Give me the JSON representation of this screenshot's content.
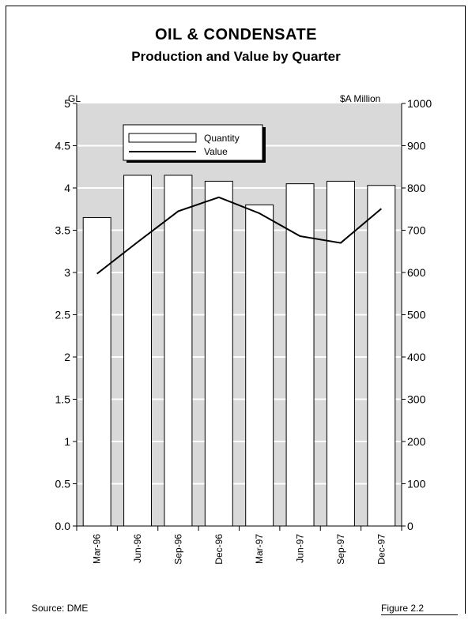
{
  "title": "OIL & CONDENSATE",
  "subtitle": "Production and Value by Quarter",
  "source": "Source: DME",
  "figure_label": "Figure 2.2",
  "colors": {
    "plot_bg": "#d9d9d9",
    "bar_fill": "#ffffff",
    "line": "#000000",
    "grid": "#ffffff"
  },
  "chart_data": {
    "type": "bar",
    "title": "OIL & CONDENSATE",
    "subtitle": "Production and Value by Quarter",
    "categories": [
      "Mar-96",
      "Jun-96",
      "Sep-96",
      "Dec-96",
      "Mar-97",
      "Jun-97",
      "Sep-97",
      "Dec-97"
    ],
    "series": [
      {
        "name": "Quantity",
        "type": "bar",
        "axis": "left",
        "values": [
          3.65,
          4.15,
          4.15,
          4.08,
          3.8,
          4.05,
          4.08,
          4.03
        ]
      },
      {
        "name": "Value",
        "type": "line",
        "axis": "right",
        "values": [
          597,
          672,
          745,
          778,
          740,
          686,
          670,
          751
        ]
      }
    ],
    "y_left": {
      "label": "GL",
      "ylim": [
        0,
        5
      ],
      "ticks": [
        "0.0",
        "0.5",
        "1",
        "1.5",
        "2",
        "2.5",
        "3",
        "3.5",
        "4",
        "4.5",
        "5"
      ]
    },
    "y_right": {
      "label": "$A Million",
      "ylim": [
        0,
        1000
      ],
      "ticks": [
        "0",
        "100",
        "200",
        "300",
        "400",
        "500",
        "600",
        "700",
        "800",
        "900",
        "1000"
      ]
    },
    "grid": true,
    "legend_position": "top-left"
  }
}
